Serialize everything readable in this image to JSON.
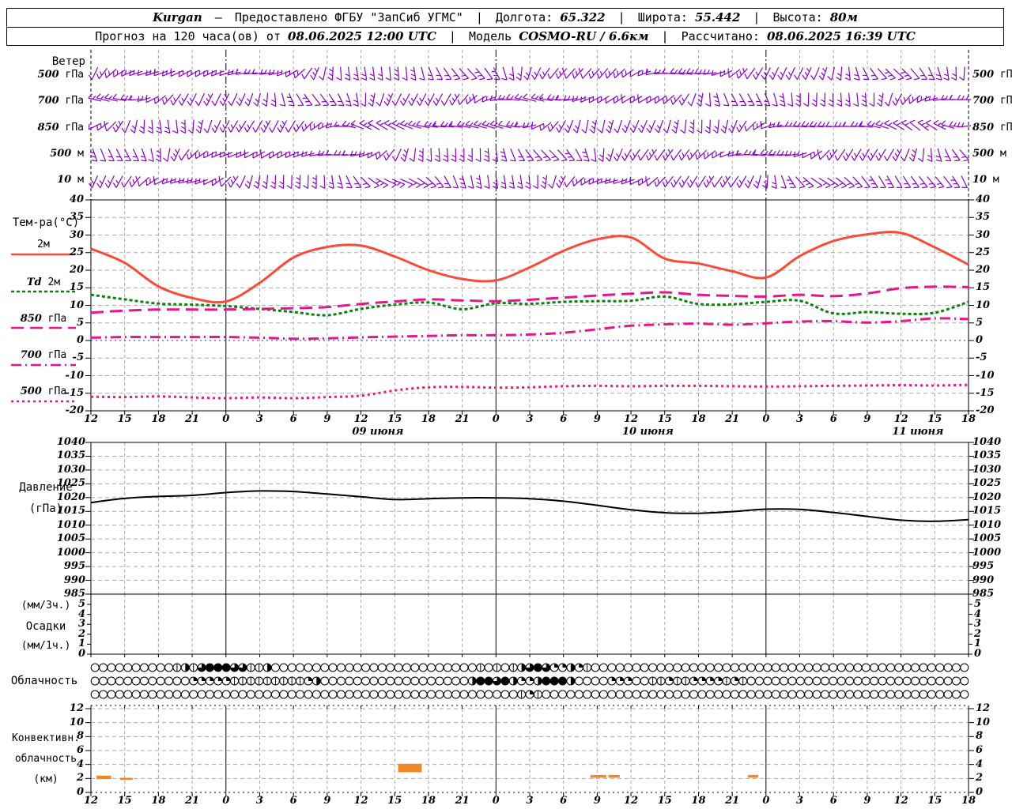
{
  "header": {
    "station": "Kurgan",
    "dash": "—",
    "provider": "Предоставлено ФГБУ \"ЗапСиб УГМС\"",
    "sep": "|",
    "lon_label": "Долгота:",
    "lon": "65.322",
    "lat_label": "Широта:",
    "lat": "55.442",
    "alt_label": "Высота:",
    "alt": "80м",
    "forecast_label": "Прогноз на 120 часа(ов) от",
    "forecast_time": "08.06.2025 12:00 UTC",
    "model_label": "Модель",
    "model": "COSMO-RU / 6.6км",
    "calc_label": "Рассчитано:",
    "calc_time": "08.06.2025 16:39 UTC"
  },
  "panels": {
    "wind": {
      "title": "Ветер",
      "levels": [
        {
          "num": "500",
          "unit": "гПа"
        },
        {
          "num": "700",
          "unit": "гПа"
        },
        {
          "num": "850",
          "unit": "гПа"
        },
        {
          "num": "500",
          "unit": "м"
        },
        {
          "num": "10",
          "unit": "м"
        }
      ]
    },
    "temp": {
      "title": "Тем-ра(°C)"
    },
    "pressure": {
      "title1": "Давление",
      "title2": "(гПа)"
    },
    "precip": {
      "title1": "(мм/3ч.)",
      "title2": "Осадки",
      "title3": "(мм/1ч.)"
    },
    "cloud": {
      "title": "Облачность"
    },
    "conv": {
      "title1": "Конвективн.",
      "title2": "облачность",
      "title3": "(км)"
    }
  },
  "chart_data": {
    "type": "meteogram",
    "x_hour_labels": [
      "12",
      "15",
      "18",
      "21",
      "0",
      "3",
      "6",
      "9",
      "12",
      "15",
      "18",
      "21",
      "0",
      "3",
      "6",
      "9",
      "12",
      "15",
      "18",
      "21",
      "0",
      "3",
      "6",
      "9",
      "12",
      "15",
      "18"
    ],
    "x_step_hours": 3,
    "midnight_indices": [
      4,
      12,
      20
    ],
    "dates": [
      {
        "label": "09 июня",
        "pos": 8.5
      },
      {
        "label": "10 июня",
        "pos": 16.5
      },
      {
        "label": "11 июня",
        "pos": 24.5
      }
    ],
    "colors": {
      "grid": "#aaaaaa",
      "axis": "#000000",
      "zero_line": "#2222ff",
      "barbs": "#8b00cc",
      "conv_bars": "#f0882a",
      "pressure_line": "#000000"
    },
    "wind": {
      "levels": [
        "500 гПа",
        "700 гПа",
        "850 гПа",
        "500 м",
        "10 м"
      ],
      "barb_color": "#8b00cc"
    },
    "temp": {
      "ylim": [
        -20,
        40
      ],
      "yticks": [
        40,
        35,
        30,
        25,
        20,
        15,
        10,
        5,
        0,
        -5,
        -10,
        -15,
        -20
      ],
      "series": [
        {
          "name": "2м",
          "legend_num": "",
          "legend_unit": "2м",
          "color": "#fa4a38",
          "width": 3,
          "dash": "",
          "values": [
            26.1,
            22.1,
            15.4,
            12.1,
            11.1,
            16.4,
            23.6,
            26.6,
            27.0,
            23.9,
            20.0,
            17.5,
            17.1,
            20.8,
            25.5,
            28.8,
            29.3,
            23.3,
            21.9,
            19.7,
            17.9,
            24.0,
            28.3,
            30.2,
            30.6,
            26.5,
            21.6
          ]
        },
        {
          "name": "Td 2м",
          "legend_num": "Td",
          "legend_unit": "2м",
          "color": "#0c800c",
          "width": 3,
          "dash": "4 3",
          "values": [
            13.0,
            11.7,
            10.5,
            10.2,
            9.8,
            9.0,
            8.1,
            7.2,
            9.0,
            10.2,
            10.8,
            8.9,
            10.6,
            10.4,
            11.0,
            11.2,
            11.3,
            12.5,
            10.4,
            10.3,
            11.0,
            11.3,
            7.7,
            8.1,
            7.6,
            7.9,
            11.0
          ]
        },
        {
          "name": "850 гПа",
          "legend_num": "850",
          "legend_unit": "гПа",
          "color": "#e8148c",
          "width": 3,
          "dash": "16 8",
          "values": [
            7.9,
            8.5,
            8.8,
            8.8,
            8.8,
            9.0,
            9.2,
            9.5,
            10.4,
            11.1,
            11.7,
            11.4,
            11.2,
            11.6,
            12.2,
            12.8,
            13.3,
            13.7,
            13.0,
            12.7,
            12.5,
            13.0,
            12.6,
            13.4,
            14.9,
            15.3,
            15.2
          ]
        },
        {
          "name": "700 гПа",
          "legend_num": "700",
          "legend_unit": "гПа",
          "color": "#e8148c",
          "width": 3,
          "dash": "13 5 2 5",
          "values": [
            0.8,
            1.0,
            1.0,
            1.0,
            1.0,
            0.8,
            0.5,
            0.6,
            0.9,
            1.1,
            1.3,
            1.5,
            1.5,
            1.7,
            2.2,
            3.2,
            4.2,
            4.6,
            4.8,
            4.5,
            4.9,
            5.4,
            5.5,
            5.1,
            5.5,
            6.3,
            6.1
          ]
        },
        {
          "name": "500 гПа",
          "legend_num": "500",
          "legend_unit": "гПа",
          "color": "#f0187c",
          "width": 3,
          "dash": "3 4",
          "values": [
            -16.0,
            -16.1,
            -15.9,
            -16.2,
            -16.4,
            -16.2,
            -16.4,
            -16.1,
            -15.7,
            -14.2,
            -13.3,
            -13.2,
            -13.4,
            -13.3,
            -13.0,
            -12.9,
            -13.0,
            -12.9,
            -12.9,
            -13.0,
            -13.1,
            -13.0,
            -12.9,
            -12.8,
            -12.7,
            -12.8,
            -12.6
          ]
        }
      ]
    },
    "pressure": {
      "ylim": [
        985,
        1040
      ],
      "yticks": [
        1040,
        1035,
        1030,
        1025,
        1020,
        1015,
        1010,
        1005,
        1000,
        995,
        990,
        985
      ],
      "values": [
        1018.2,
        1019.7,
        1020.4,
        1020.8,
        1021.8,
        1022.4,
        1022.2,
        1021.3,
        1020.3,
        1019.3,
        1019.6,
        1019.9,
        1019.9,
        1019.6,
        1018.7,
        1017.2,
        1015.6,
        1014.5,
        1014.3,
        1014.9,
        1015.8,
        1015.7,
        1014.6,
        1013.2,
        1011.8,
        1011.4,
        1012.0
      ]
    },
    "precip": {
      "ylim": [
        0,
        6
      ],
      "yticks": [
        5,
        4,
        3,
        2,
        1,
        0
      ],
      "values": []
    },
    "cloud": {
      "symbol_codes_legend": "0=clear 1=few(line) 2=quarter 3=half 4=three-quarter 5=overcast",
      "rows": [
        "0000000000131455544113000000000000000000000000010101345422321000000000000000000000000000000000000000000",
        "0000000000002222211111111123000000000000000000355453223555300002220011211222212100000000000000000000000",
        "0000000000000000000000000000000000000000000000000000121000000000000000000000000000000000000000000000000"
      ]
    },
    "convective": {
      "ylim": [
        0,
        12
      ],
      "yticks": [
        12,
        10,
        8,
        6,
        4,
        2,
        0
      ],
      "bars": [
        {
          "h0": 0.5,
          "h1": 1.8,
          "km0": 1.9,
          "km1": 2.4
        },
        {
          "h0": 2.6,
          "h1": 3.7,
          "km0": 1.8,
          "km1": 2.1
        },
        {
          "h0": 27.3,
          "h1": 29.4,
          "km0": 2.9,
          "km1": 4.1
        },
        {
          "h0": 44.4,
          "h1": 45.8,
          "km0": 2.1,
          "km1": 2.5
        },
        {
          "h0": 46.0,
          "h1": 47.0,
          "km0": 2.1,
          "km1": 2.5
        },
        {
          "h0": 58.4,
          "h1": 59.3,
          "km0": 2.1,
          "km1": 2.5
        }
      ]
    }
  }
}
